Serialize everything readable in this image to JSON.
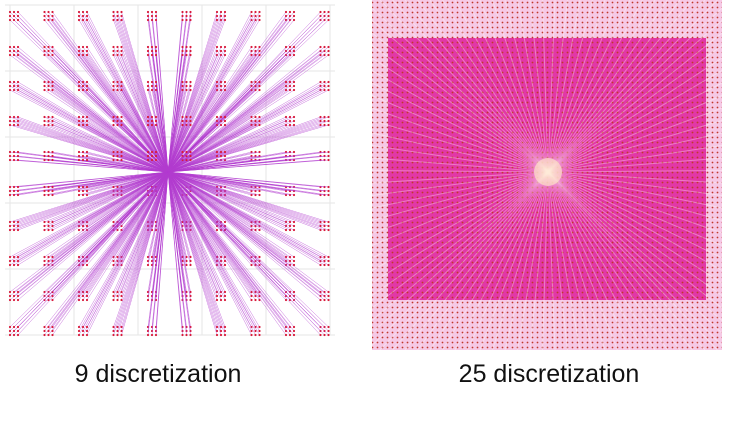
{
  "panels": [
    {
      "caption": "9 discretization"
    },
    {
      "caption": "25 discretization"
    }
  ]
}
